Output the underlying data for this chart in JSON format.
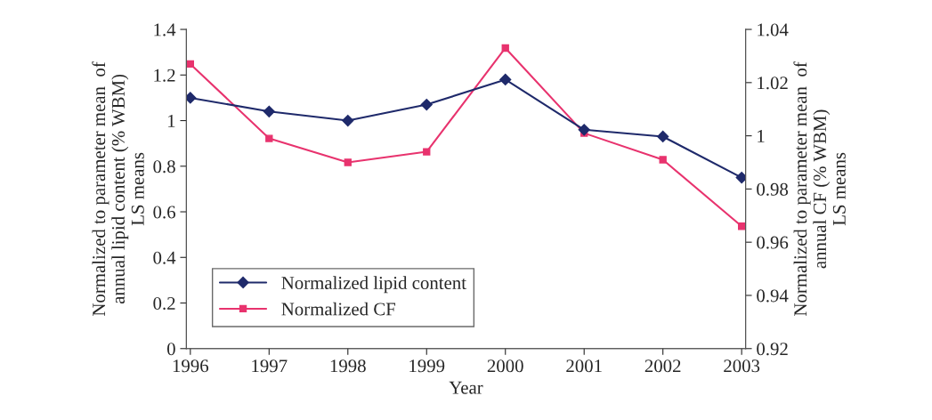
{
  "chart_data": {
    "type": "line",
    "categories": [
      "1996",
      "1997",
      "1998",
      "1999",
      "2000",
      "2001",
      "2002",
      "2003"
    ],
    "xlabel": "Year",
    "ylabel": "Normalized to parameter mean  of\nannual lipid content (% WBM)\nLS means",
    "y2label": "Normalized to parameter mean  of\nannual CF (% WBM)\nLS means",
    "ylim": [
      0,
      1.4
    ],
    "yticks": [
      0,
      0.2,
      0.4,
      0.6,
      0.8,
      1,
      1.2,
      1.4
    ],
    "y2lim": [
      0.92,
      1.04
    ],
    "y2ticks": [
      0.92,
      0.94,
      0.96,
      0.98,
      1,
      1.02,
      1.04
    ],
    "grid": false,
    "legend": "bottom left",
    "line_style": "solid",
    "series": [
      {
        "name": "Normalized lipid content",
        "color": "#1f2a6b",
        "marker": "diamond",
        "values": [
          1.1,
          1.04,
          1.0,
          1.07,
          1.18,
          0.96,
          0.93,
          0.75
        ]
      },
      {
        "name": "Normalized CF",
        "color": "#e8336e",
        "marker": "square",
        "axis": "y2",
        "values": [
          1.027,
          0.999,
          0.99,
          0.994,
          1.033,
          1.001,
          0.991,
          0.966
        ]
      }
    ]
  }
}
